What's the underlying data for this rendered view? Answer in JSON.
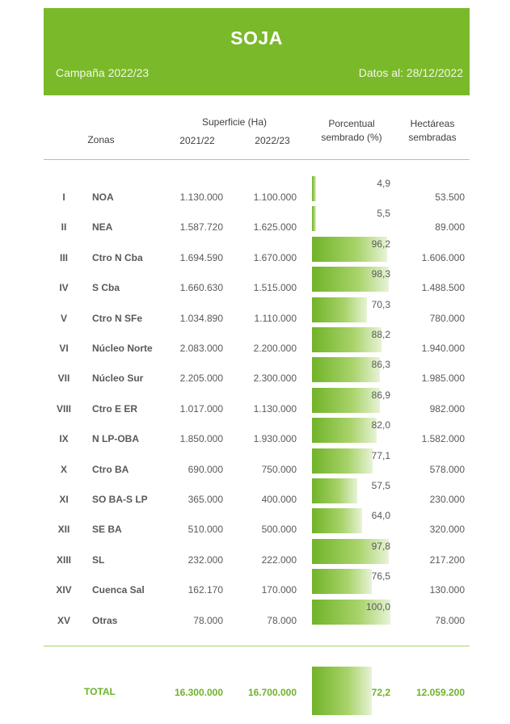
{
  "header": {
    "title": "SOJA",
    "campaign": "Campaña 2022/23",
    "date": "Datos al: 28/12/2022"
  },
  "columns": {
    "zones": "Zonas",
    "surface": "Superficie (Ha)",
    "year1": "2021/22",
    "year2": "2022/23",
    "pct_line1": "Porcentual",
    "pct_line2": "sembrado (%)",
    "ha_line1": "Hectáreas",
    "ha_line2": "sembradas"
  },
  "rows": [
    {
      "roman": "I",
      "zone": "NOA",
      "s2122": "1.130.000",
      "s2223": "1.100.000",
      "pct": "4,9",
      "pct_value": 4.9,
      "ha": "53.500"
    },
    {
      "roman": "II",
      "zone": "NEA",
      "s2122": "1.587.720",
      "s2223": "1.625.000",
      "pct": "5,5",
      "pct_value": 5.5,
      "ha": "89.000"
    },
    {
      "roman": "III",
      "zone": "Ctro N Cba",
      "s2122": "1.694.590",
      "s2223": "1.670.000",
      "pct": "96,2",
      "pct_value": 96.2,
      "ha": "1.606.000"
    },
    {
      "roman": "IV",
      "zone": "S Cba",
      "s2122": "1.660.630",
      "s2223": "1.515.000",
      "pct": "98,3",
      "pct_value": 98.3,
      "ha": "1.488.500"
    },
    {
      "roman": "V",
      "zone": "Ctro N SFe",
      "s2122": "1.034.890",
      "s2223": "1.110.000",
      "pct": "70,3",
      "pct_value": 70.3,
      "ha": "780.000"
    },
    {
      "roman": "VI",
      "zone": "Núcleo Norte",
      "s2122": "2.083.000",
      "s2223": "2.200.000",
      "pct": "88,2",
      "pct_value": 88.2,
      "ha": "1.940.000"
    },
    {
      "roman": "VII",
      "zone": "Núcleo Sur",
      "s2122": "2.205.000",
      "s2223": "2.300.000",
      "pct": "86,3",
      "pct_value": 86.3,
      "ha": "1.985.000"
    },
    {
      "roman": "VIII",
      "zone": "Ctro E ER",
      "s2122": "1.017.000",
      "s2223": "1.130.000",
      "pct": "86,9",
      "pct_value": 86.9,
      "ha": "982.000"
    },
    {
      "roman": "IX",
      "zone": "N LP-OBA",
      "s2122": "1.850.000",
      "s2223": "1.930.000",
      "pct": "82,0",
      "pct_value": 82.0,
      "ha": "1.582.000"
    },
    {
      "roman": "X",
      "zone": "Ctro BA",
      "s2122": "690.000",
      "s2223": "750.000",
      "pct": "77,1",
      "pct_value": 77.1,
      "ha": "578.000"
    },
    {
      "roman": "XI",
      "zone": "SO BA-S LP",
      "s2122": "365.000",
      "s2223": "400.000",
      "pct": "57,5",
      "pct_value": 57.5,
      "ha": "230.000"
    },
    {
      "roman": "XII",
      "zone": "SE BA",
      "s2122": "510.000",
      "s2223": "500.000",
      "pct": "64,0",
      "pct_value": 64.0,
      "ha": "320.000"
    },
    {
      "roman": "XIII",
      "zone": "SL",
      "s2122": "232.000",
      "s2223": "222.000",
      "pct": "97,8",
      "pct_value": 97.8,
      "ha": "217.200"
    },
    {
      "roman": "XIV",
      "zone": "Cuenca Sal",
      "s2122": "162.170",
      "s2223": "170.000",
      "pct": "76,5",
      "pct_value": 76.5,
      "ha": "130.000"
    },
    {
      "roman": "XV",
      "zone": "Otras",
      "s2122": "78.000",
      "s2223": "78.000",
      "pct": "100,0",
      "pct_value": 100.0,
      "ha": "78.000"
    }
  ],
  "total": {
    "label": "TOTAL",
    "s2122": "16.300.000",
    "s2223": "16.700.000",
    "pct": "72,2",
    "pct_value": 72.2,
    "ha": "12.059.200"
  },
  "colors": {
    "accent": "#7ab929",
    "total_text": "#6fb22a"
  }
}
